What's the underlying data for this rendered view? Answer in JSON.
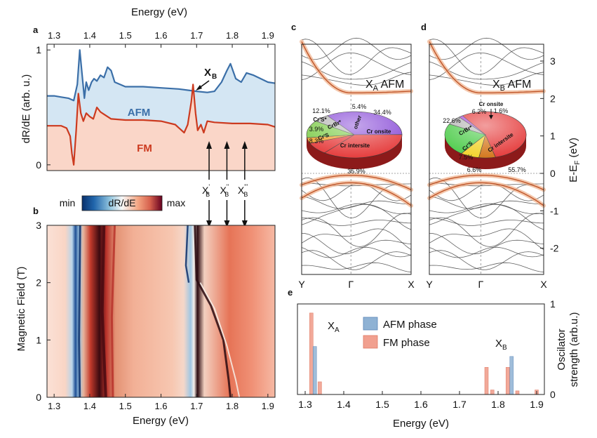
{
  "colors": {
    "afm": "#3b6fa8",
    "fm": "#cc3a1f",
    "afm_fill": "#d4e6f3",
    "fm_fill": "#fad6c8",
    "band": "#3a3a3a",
    "band_hl": "#c0562a",
    "hl_glow": "#f0b08a",
    "afm_bar": "#8fb2d4",
    "fm_bar": "#f1a08f"
  },
  "panel_a": {
    "label": "a",
    "title": "Energy (eV)",
    "ylabel": "dR/dE (arb. u.)",
    "x_ticks": [
      "1.3",
      "1.4",
      "1.5",
      "1.6",
      "1.7",
      "1.8",
      "1.9"
    ],
    "y_ticks": [
      "0",
      "1"
    ],
    "afm_label": "AFM",
    "fm_label": "FM",
    "xb_label": "X",
    "xb_sub": "B",
    "chart_data": {
      "type": "line",
      "xlim": [
        1.28,
        1.92
      ],
      "ylim": [
        -0.05,
        1.05
      ],
      "title": "Energy (eV)",
      "ylabel": "dR/dE (arb. u.)",
      "series": [
        {
          "name": "AFM",
          "x": [
            1.28,
            1.3,
            1.32,
            1.34,
            1.355,
            1.365,
            1.372,
            1.378,
            1.385,
            1.39,
            1.397,
            1.405,
            1.412,
            1.42,
            1.43,
            1.44,
            1.45,
            1.46,
            1.47,
            1.5,
            1.55,
            1.6,
            1.65,
            1.7,
            1.73,
            1.75,
            1.77,
            1.785,
            1.795,
            1.81,
            1.825,
            1.84,
            1.86,
            1.88,
            1.9,
            1.92
          ],
          "y": [
            0.6,
            0.6,
            0.59,
            0.58,
            0.56,
            0.7,
            1.0,
            0.8,
            0.58,
            0.72,
            0.65,
            0.72,
            0.75,
            0.73,
            0.78,
            0.76,
            0.85,
            0.82,
            0.72,
            0.68,
            0.68,
            0.67,
            0.66,
            0.64,
            0.63,
            0.64,
            0.72,
            0.82,
            0.88,
            0.75,
            0.72,
            0.8,
            0.78,
            0.75,
            0.72,
            0.71
          ]
        },
        {
          "name": "FM",
          "x": [
            1.28,
            1.3,
            1.32,
            1.335,
            1.345,
            1.35,
            1.355,
            1.362,
            1.368,
            1.375,
            1.382,
            1.39,
            1.4,
            1.41,
            1.42,
            1.43,
            1.44,
            1.46,
            1.5,
            1.55,
            1.6,
            1.64,
            1.665,
            1.675,
            1.685,
            1.69,
            1.697,
            1.703,
            1.712,
            1.72,
            1.73,
            1.75,
            1.8,
            1.85,
            1.9,
            1.92
          ],
          "y": [
            0.34,
            0.34,
            0.34,
            0.32,
            0.25,
            0.1,
            0.0,
            0.3,
            0.62,
            0.45,
            0.38,
            0.45,
            0.42,
            0.4,
            0.5,
            0.46,
            0.44,
            0.4,
            0.39,
            0.39,
            0.38,
            0.35,
            0.28,
            0.35,
            0.55,
            0.7,
            0.45,
            0.3,
            0.35,
            0.28,
            0.38,
            0.37,
            0.36,
            0.36,
            0.35,
            0.33
          ]
        }
      ]
    }
  },
  "arrows": [
    {
      "label": "X",
      "sup": "'",
      "sub": "B",
      "energy": 1.735
    },
    {
      "label": "X",
      "sup": "''",
      "sub": "B",
      "energy": 1.785
    },
    {
      "label": "X",
      "sup": "'''",
      "sub": "B",
      "energy": 1.835
    }
  ],
  "colorbar": {
    "min_label": "min",
    "mid_label": "dR/dE",
    "max_label": "max"
  },
  "panel_b": {
    "label": "b",
    "xlabel": "Energy (eV)",
    "ylabel": "Magnetic Field (T)",
    "x_ticks": [
      "1.3",
      "1.4",
      "1.5",
      "1.6",
      "1.7",
      "1.8",
      "1.9"
    ],
    "y_ticks": [
      "0",
      "1",
      "2",
      "3"
    ],
    "chart_data": {
      "type": "heatmap",
      "xlim": [
        1.28,
        1.92
      ],
      "ylim": [
        0,
        3
      ],
      "xlabel": "Energy (eV)",
      "ylabel": "Magnetic Field (T)",
      "colormap": "blue-white-red",
      "colorbar": [
        "min",
        "dR/dE",
        "max"
      ]
    }
  },
  "panel_c": {
    "label": "c",
    "title": "X",
    "title_sub": "A",
    "title_rest": " AFM",
    "k_labels": [
      "Y",
      "Γ",
      "X"
    ],
    "pie": {
      "slices": [
        {
          "name": "Cr onsite",
          "value": 34.4
        },
        {
          "name": "Cr intersite",
          "value": 35.9
        },
        {
          "name": "CrS intersite",
          "value": 8.3
        },
        {
          "name": "Cr'S",
          "value": 3.9
        },
        {
          "name": "CrBr'",
          "value": 12.1
        },
        {
          "name": "Other",
          "value": 5.4
        }
      ],
      "labels": [
        "34.4%",
        "35.9%",
        "8.3%",
        "3.9%",
        "12.1%",
        "5.4%"
      ],
      "names": [
        "Cr onsite",
        "Cr intersite",
        "Cr'S",
        "Cr'S*",
        "CrBr*",
        "other"
      ]
    }
  },
  "panel_d": {
    "label": "d",
    "title": "X",
    "title_sub": "B",
    "title_rest": " AFM",
    "k_labels": [
      "Y",
      "Γ",
      "X"
    ],
    "ylabel": "E-E",
    "ylabel_sub": "F",
    "ylabel_unit": " (eV)",
    "y_ticks": [
      "-2",
      "-1",
      "0",
      "1",
      "2",
      "3"
    ],
    "pie": {
      "slices": [
        {
          "name": "Cr intersite",
          "value": 55.7
        },
        {
          "name": "CrS",
          "value": 6.6
        },
        {
          "name": "Cr'S",
          "value": 7.5
        },
        {
          "name": "CrBr",
          "value": 22.6
        },
        {
          "name": "Other",
          "value": 6.2
        },
        {
          "name": "Cr onsite",
          "value": 1.6
        }
      ],
      "labels": [
        "55.7%",
        "6.6%",
        "7.5%",
        "22.6%",
        "6.2%",
        "1.6%"
      ],
      "names": [
        "Cr intersite",
        "Cr'S",
        "CrBr*",
        "Cr onsite"
      ]
    }
  },
  "panel_e": {
    "label": "e",
    "xlabel": "Energy (eV)",
    "ylabel1": "Oscilator",
    "ylabel2": "strength (arb.u.)",
    "x_ticks": [
      "1.3",
      "1.4",
      "1.5",
      "1.6",
      "1.7",
      "1.8",
      "1.9"
    ],
    "y_ticks": [
      "0",
      "1"
    ],
    "xa": "X",
    "xa_sub": "A",
    "xb": "X",
    "xb_sub": "B",
    "legend": [
      "AFM phase",
      "FM phase"
    ],
    "chart_data": {
      "type": "bar",
      "xlim": [
        1.28,
        1.92
      ],
      "ylim": [
        0,
        1
      ],
      "xlabel": "Energy (eV)",
      "ylabel": "Oscilator strength (arb.u.)",
      "series": [
        {
          "name": "AFM phase",
          "x": [
            1.325,
            1.835
          ],
          "values": [
            0.53,
            0.42
          ]
        },
        {
          "name": "FM phase",
          "x": [
            1.316,
            1.338,
            1.77,
            1.785,
            1.825,
            1.85,
            1.9
          ],
          "values": [
            0.9,
            0.14,
            0.3,
            0.05,
            0.3,
            0.04,
            0.05
          ]
        }
      ]
    }
  }
}
